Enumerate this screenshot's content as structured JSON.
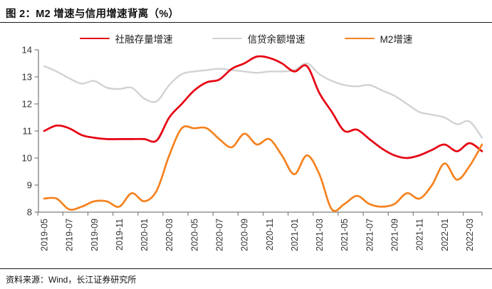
{
  "header": {
    "title": "图 2：M2 增速与信用增速背离（%）"
  },
  "legend": {
    "items": [
      {
        "label": "社融存量增速",
        "color": "#e60012"
      },
      {
        "label": "信贷余额增速",
        "color": "#d2d2d2"
      },
      {
        "label": "M2增速",
        "color": "#f5821f"
      }
    ]
  },
  "chart_data": {
    "type": "line",
    "title": "图 2：M2 增速与信用增速背离（%）",
    "xlabel": "",
    "ylabel": "",
    "ylim": [
      8,
      14
    ],
    "yticks": [
      8,
      9,
      10,
      11,
      12,
      13,
      14
    ],
    "grid": false,
    "legend_position": "top",
    "line_style": "smooth",
    "categories": [
      "2019-05",
      "2019-06",
      "2019-07",
      "2019-08",
      "2019-09",
      "2019-10",
      "2019-11",
      "2019-12",
      "2020-01",
      "2020-02",
      "2020-03",
      "2020-04",
      "2020-05",
      "2020-06",
      "2020-07",
      "2020-08",
      "2020-09",
      "2020-10",
      "2020-11",
      "2020-12",
      "2021-01",
      "2021-02",
      "2021-03",
      "2021-04",
      "2021-05",
      "2021-06",
      "2021-07",
      "2021-08",
      "2021-09",
      "2021-10",
      "2021-11",
      "2021-12",
      "2022-01",
      "2022-02",
      "2022-03",
      "2022-04"
    ],
    "x_tick_labels": [
      "2019-05",
      "2019-07",
      "2019-09",
      "2019-11",
      "2020-01",
      "2020-03",
      "2020-05",
      "2020-07",
      "2020-09",
      "2020-11",
      "2021-01",
      "2021-03",
      "2021-05",
      "2021-07",
      "2021-09",
      "2021-11",
      "2022-01",
      "2022-03"
    ],
    "series": [
      {
        "name": "社融存量增速",
        "color": "#e60012",
        "width": 2.7,
        "values": [
          11.0,
          11.2,
          11.1,
          10.85,
          10.75,
          10.7,
          10.7,
          10.7,
          10.7,
          10.65,
          11.5,
          12.0,
          12.5,
          12.8,
          12.9,
          13.3,
          13.5,
          13.75,
          13.7,
          13.5,
          13.2,
          13.4,
          12.4,
          11.7,
          11.0,
          11.05,
          10.7,
          10.35,
          10.1,
          10.0,
          10.1,
          10.3,
          10.5,
          10.25,
          10.55,
          10.25
        ]
      },
      {
        "name": "信贷余额增速",
        "color": "#d2d2d2",
        "width": 2.4,
        "values": [
          13.4,
          13.2,
          12.95,
          12.75,
          12.85,
          12.6,
          12.55,
          12.6,
          12.2,
          12.1,
          12.7,
          13.1,
          13.2,
          13.25,
          13.3,
          13.25,
          13.2,
          13.15,
          13.2,
          13.2,
          13.25,
          13.5,
          13.1,
          12.85,
          12.7,
          12.65,
          12.7,
          12.5,
          12.3,
          12.0,
          11.7,
          11.6,
          11.5,
          11.25,
          11.35,
          10.75
        ]
      },
      {
        "name": "M2增速",
        "color": "#f5821f",
        "width": 2.7,
        "values": [
          8.5,
          8.5,
          8.1,
          8.2,
          8.4,
          8.4,
          8.2,
          8.7,
          8.4,
          8.8,
          10.1,
          11.1,
          11.1,
          11.1,
          10.7,
          10.4,
          10.9,
          10.5,
          10.7,
          10.1,
          9.4,
          10.1,
          9.4,
          8.1,
          8.3,
          8.6,
          8.3,
          8.2,
          8.3,
          8.7,
          8.5,
          9.0,
          9.8,
          9.2,
          9.7,
          10.5
        ]
      }
    ]
  },
  "footer": {
    "source": "资料来源：Wind，长江证券研究所"
  }
}
